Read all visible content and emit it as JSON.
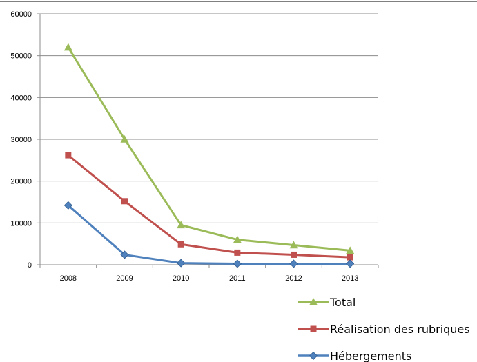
{
  "chart_data": {
    "type": "line",
    "title": "",
    "xlabel": "",
    "ylabel": "",
    "categories": [
      "2008",
      "2009",
      "2010",
      "2011",
      "2012",
      "2013"
    ],
    "ylim": [
      0,
      60000
    ],
    "yticks": [
      0,
      10000,
      20000,
      30000,
      40000,
      50000,
      60000
    ],
    "yticks_labels": [
      "0",
      "10000",
      "20000",
      "30000",
      "40000",
      "50000",
      "60000"
    ],
    "grid": "horizontal",
    "legend_position": "bottom-right",
    "series": [
      {
        "name": "Total",
        "color": "#9BBB59",
        "marker": "triangle",
        "values": [
          52000,
          30000,
          9500,
          6000,
          4700,
          3400
        ]
      },
      {
        "name": "Réalisation des rubriques",
        "color": "#C0504D",
        "marker": "square",
        "values": [
          26200,
          15200,
          4900,
          2900,
          2400,
          1800
        ]
      },
      {
        "name": "Hébergements",
        "color": "#4F81BD",
        "marker": "diamond",
        "values": [
          14200,
          2400,
          400,
          250,
          250,
          250
        ]
      }
    ]
  }
}
